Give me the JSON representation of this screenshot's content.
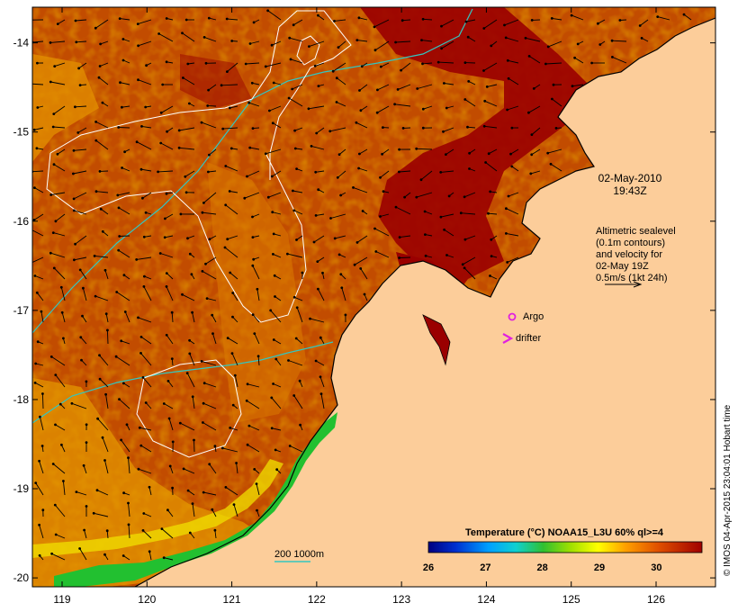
{
  "map": {
    "title": "",
    "date_label": "02-May-2010",
    "time_label": "19:43Z",
    "legend_lines": [
      "Altimetric sealevel",
      "(0.1m contours)",
      "and velocity for",
      "02-May 19Z",
      "0.5m/s (1kt 24h)"
    ],
    "argo_label": "Argo",
    "drifter_label": "drifter",
    "depth_label": "200  1000m",
    "credit": "© IMOS 04-Apr-2015 23:04:01 Hobart time",
    "lon_range": [
      118.65,
      126.7
    ],
    "lat_range": [
      -20.1,
      -13.6
    ],
    "lon_ticks": [
      119,
      120,
      121,
      122,
      123,
      124,
      125,
      126
    ],
    "lat_ticks": [
      -14,
      -15,
      -16,
      -17,
      -18,
      -19,
      -20
    ],
    "colorbar": {
      "title": "Temperature (°C) NOAA15_L3U 60% ql>=4",
      "ticks": [
        26,
        27,
        28,
        29,
        30
      ],
      "range": [
        26,
        30.8
      ]
    },
    "colors": {
      "land": "#fccd9a",
      "sea_warm": "#c04a00",
      "sea_hot": "#9a0000",
      "coast_green": "#22c030",
      "contour_white": "#ffffff",
      "bathy_cyan": "#33c6c0",
      "argo": "#e020e0"
    }
  }
}
